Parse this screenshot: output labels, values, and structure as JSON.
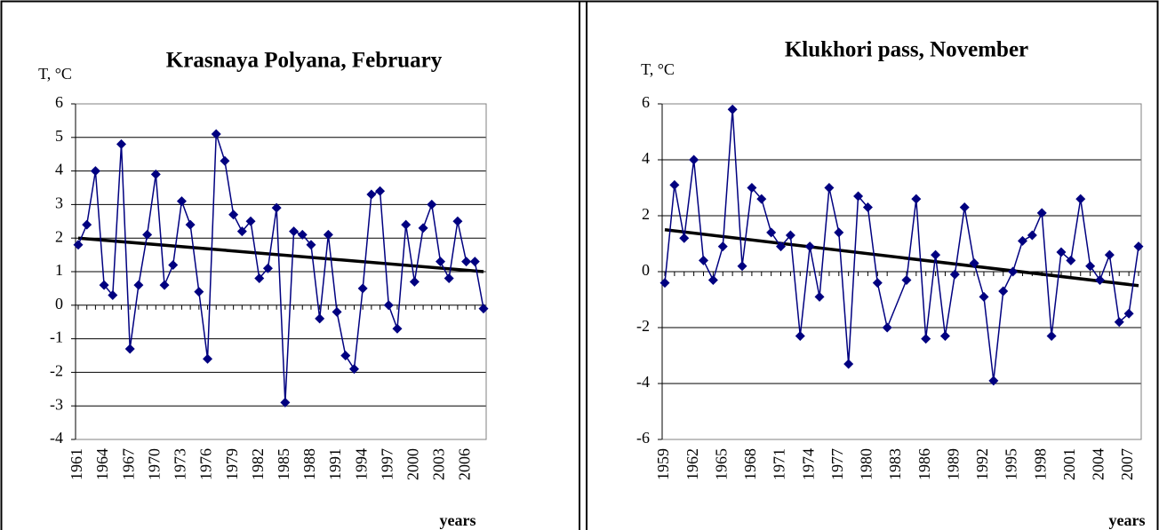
{
  "chart_data": [
    {
      "type": "line",
      "title": "Krasnaya Polyana, February",
      "y_label": "T, °C",
      "x_label": "years",
      "x": [
        1961,
        1962,
        1963,
        1964,
        1965,
        1966,
        1967,
        1968,
        1969,
        1970,
        1971,
        1972,
        1973,
        1974,
        1975,
        1976,
        1977,
        1978,
        1979,
        1980,
        1981,
        1982,
        1983,
        1984,
        1985,
        1986,
        1987,
        1988,
        1989,
        1990,
        1991,
        1992,
        1993,
        1994,
        1995,
        1996,
        1997,
        1998,
        1999,
        2000,
        2001,
        2002,
        2003,
        2004,
        2005,
        2006,
        2007,
        2008
      ],
      "values": [
        1.8,
        2.4,
        4.0,
        0.6,
        0.3,
        4.8,
        -1.3,
        0.6,
        2.1,
        3.9,
        0.6,
        1.2,
        3.1,
        2.4,
        0.4,
        -1.6,
        5.1,
        4.3,
        2.7,
        2.2,
        2.5,
        0.8,
        1.1,
        2.9,
        -2.9,
        2.2,
        2.1,
        1.8,
        -0.4,
        2.1,
        -0.2,
        -1.5,
        -1.9,
        0.5,
        3.3,
        3.4,
        0.0,
        -0.7,
        2.4,
        0.7,
        2.3,
        3.0,
        1.3,
        0.8,
        2.5,
        1.3,
        1.3,
        -0.1
      ],
      "color": "#000080",
      "trend": {
        "x": [
          1961,
          2008
        ],
        "values": [
          2.0,
          1.0
        ],
        "color": "#000000"
      },
      "xlim": [
        1961,
        2008
      ],
      "xticks": [
        1961,
        1964,
        1967,
        1970,
        1973,
        1976,
        1979,
        1982,
        1985,
        1988,
        1991,
        1994,
        1997,
        2000,
        2003,
        2006
      ],
      "ylim": [
        -4,
        6
      ],
      "yticks": [
        -4,
        -3,
        -2,
        -1,
        0,
        1,
        2,
        3,
        4,
        5,
        6
      ],
      "grid": true
    },
    {
      "type": "line",
      "title": "Klukhori pass, November",
      "y_label": "T, °C",
      "x_label": "years",
      "x": [
        1959,
        1960,
        1961,
        1962,
        1963,
        1964,
        1965,
        1966,
        1967,
        1968,
        1969,
        1970,
        1971,
        1972,
        1973,
        1974,
        1975,
        1976,
        1977,
        1978,
        1979,
        1980,
        1981,
        1982,
        1984,
        1985,
        1986,
        1987,
        1988,
        1989,
        1990,
        1991,
        1992,
        1993,
        1994,
        1995,
        1996,
        1997,
        1998,
        1999,
        2000,
        2001,
        2002,
        2003,
        2004,
        2005,
        2006,
        2007,
        2008
      ],
      "values": [
        -0.4,
        3.1,
        1.2,
        4.0,
        0.4,
        -0.3,
        0.9,
        5.8,
        0.2,
        3.0,
        2.6,
        1.4,
        0.9,
        1.3,
        -2.3,
        0.9,
        -0.9,
        3.0,
        1.4,
        -3.3,
        2.7,
        2.3,
        -0.4,
        -2.0,
        -0.3,
        2.6,
        -2.4,
        0.6,
        -2.3,
        -0.1,
        2.3,
        0.3,
        -0.9,
        -3.9,
        -0.7,
        0.0,
        1.1,
        1.3,
        2.1,
        -2.3,
        0.7,
        0.4,
        2.6,
        0.2,
        -0.3,
        0.6,
        -1.8,
        -1.5,
        0.9
      ],
      "color": "#000080",
      "trend": {
        "x": [
          1959,
          2008
        ],
        "values": [
          1.5,
          -0.5
        ],
        "color": "#000000"
      },
      "xlim": [
        1959,
        2008
      ],
      "xticks": [
        1959,
        1962,
        1965,
        1968,
        1971,
        1974,
        1977,
        1980,
        1983,
        1986,
        1989,
        1992,
        1995,
        1998,
        2001,
        2004,
        2007
      ],
      "ylim": [
        -6,
        6
      ],
      "yticks": [
        -6,
        -4,
        -2,
        0,
        2,
        4,
        6
      ],
      "grid": true
    }
  ]
}
